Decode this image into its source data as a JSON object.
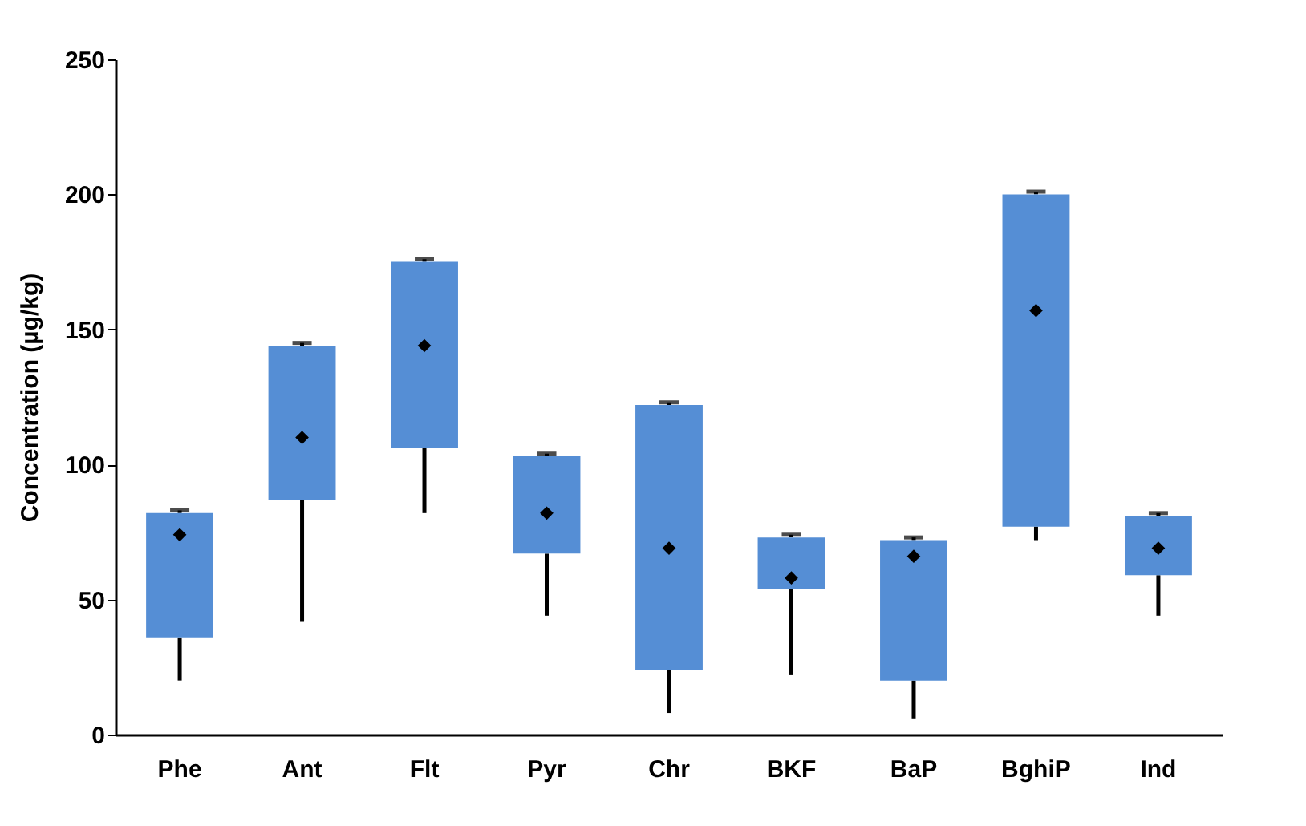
{
  "chart_data": {
    "type": "box",
    "ylabel": "Concentration (µg/kg)",
    "categories": [
      "Phe",
      "Ant",
      "Flt",
      "Pyr",
      "Chr",
      "BKF",
      "BaP",
      "BghiP",
      "Ind"
    ],
    "boxes": [
      {
        "low": 20,
        "q1": 36,
        "median": 74,
        "q3": 82,
        "high": 83
      },
      {
        "low": 42,
        "q1": 87,
        "median": 110,
        "q3": 144,
        "high": 145
      },
      {
        "low": 82,
        "q1": 106,
        "median": 144,
        "q3": 175,
        "high": 176
      },
      {
        "low": 44,
        "q1": 67,
        "median": 82,
        "q3": 103,
        "high": 104
      },
      {
        "low": 8,
        "q1": 24,
        "median": 69,
        "q3": 122,
        "high": 123
      },
      {
        "low": 22,
        "q1": 54,
        "median": 58,
        "q3": 73,
        "high": 74
      },
      {
        "low": 6,
        "q1": 20,
        "median": 66,
        "q3": 72,
        "high": 73
      },
      {
        "low": 72,
        "q1": 77,
        "median": 157,
        "q3": 200,
        "high": 201
      },
      {
        "low": 44,
        "q1": 59,
        "median": 69,
        "q3": 81,
        "high": 82
      }
    ],
    "color": "#558ed5",
    "marker": "diamond",
    "ylim": [
      0,
      250
    ],
    "yticks": [
      0,
      50,
      100,
      150,
      200,
      250
    ]
  }
}
